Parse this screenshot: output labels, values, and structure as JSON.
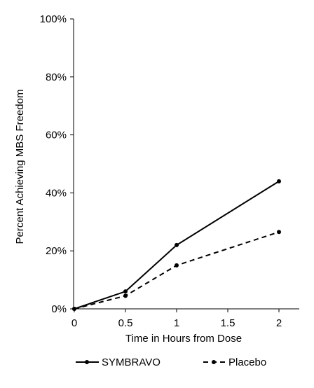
{
  "chart_data": {
    "type": "line",
    "title": "",
    "xlabel": "Time in Hours from Dose",
    "ylabel": "Percent Achieving MBS Freedom",
    "x_ticks": [
      0,
      0.5,
      1,
      1.5,
      2
    ],
    "x_tick_labels": [
      "0",
      "0.5",
      "1",
      "1.5",
      "2"
    ],
    "y_ticks": [
      0,
      20,
      40,
      60,
      80,
      100
    ],
    "y_tick_labels": [
      "0%",
      "20%",
      "40%",
      "60%",
      "80%",
      "100%"
    ],
    "xlim": [
      0,
      2.2
    ],
    "ylim": [
      0,
      100
    ],
    "grid": false,
    "legend_position": "bottom",
    "series": [
      {
        "name": "SYMBRAVO",
        "line_style": "solid",
        "color": "#000000",
        "x": [
          0,
          0.5,
          1,
          2
        ],
        "y": [
          0,
          6,
          22,
          44
        ]
      },
      {
        "name": "Placebo",
        "line_style": "dashed",
        "color": "#000000",
        "x": [
          0,
          0.5,
          1,
          2
        ],
        "y": [
          0,
          4.5,
          15,
          26.5
        ]
      }
    ]
  }
}
